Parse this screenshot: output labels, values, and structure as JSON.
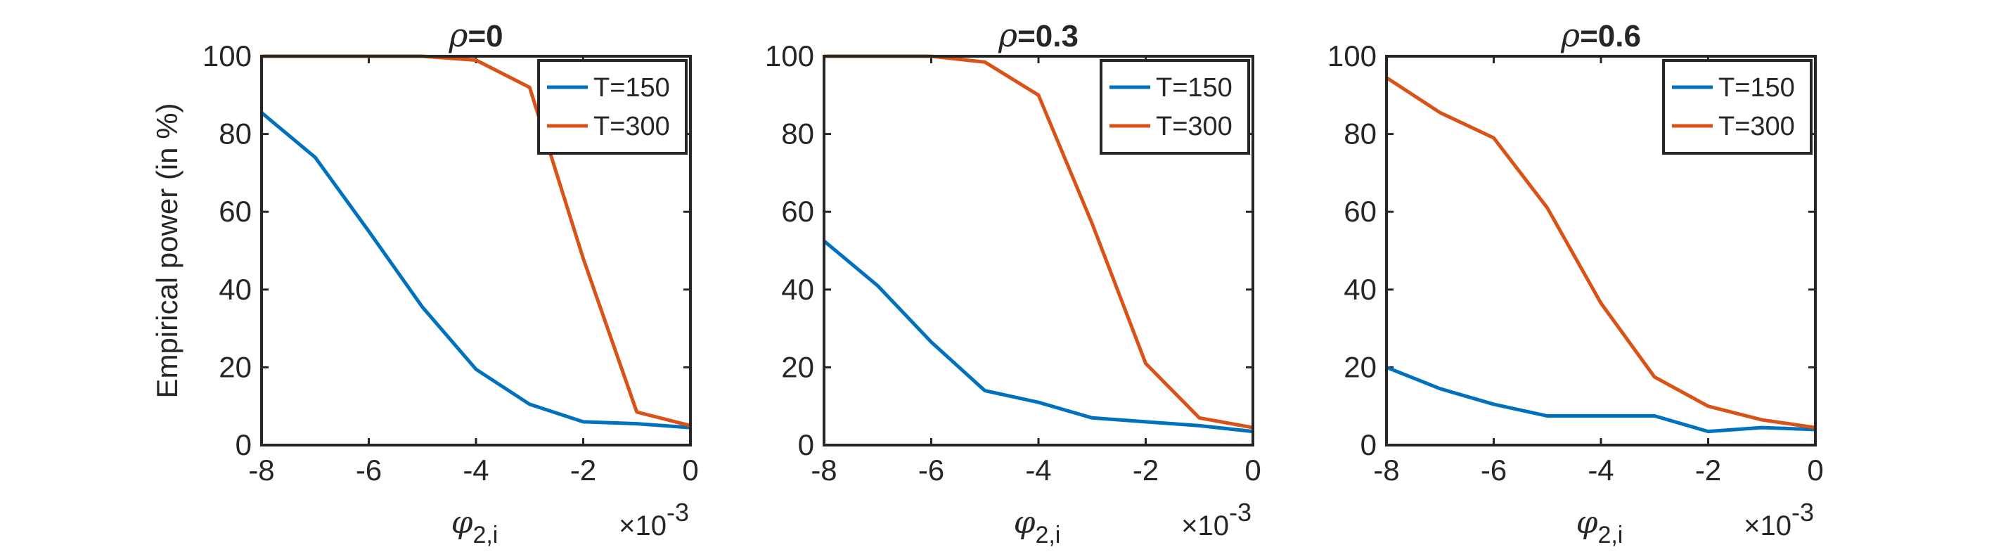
{
  "figure": {
    "ylabel": "Empirical power (in %)",
    "xlabel_symbol": "φ",
    "xlabel_subscript": "2,i",
    "x_exponent_prefix": "×10",
    "x_exponent_power": "-3",
    "colors": {
      "T=150": "#0072BD",
      "T=300": "#D95319",
      "axes": "#262626"
    }
  },
  "chart_data": [
    {
      "type": "line",
      "title_symbol": "ρ",
      "title": "=0",
      "xlim": [
        -8,
        0
      ],
      "ylim": [
        0,
        100
      ],
      "xticks": [
        -8,
        -6,
        -4,
        -2,
        0
      ],
      "yticks": [
        0,
        20,
        40,
        60,
        80,
        100
      ],
      "x_scale_label": "×10-3",
      "legend_position": "top-right",
      "grid": false,
      "x": [
        -8,
        -7,
        -6,
        -5,
        -4,
        -3,
        -2,
        -1,
        0
      ],
      "series": [
        {
          "name": "T=150",
          "color": "#0072BD",
          "values": [
            85.5,
            74,
            55,
            35.5,
            19.5,
            10.5,
            6,
            5.5,
            4.5
          ]
        },
        {
          "name": "T=300",
          "color": "#D95319",
          "values": [
            100,
            100,
            100,
            100,
            99,
            92,
            48,
            8.5,
            5
          ]
        }
      ]
    },
    {
      "type": "line",
      "title_symbol": "ρ",
      "title": "=0.3",
      "xlim": [
        -8,
        0
      ],
      "ylim": [
        0,
        100
      ],
      "xticks": [
        -8,
        -6,
        -4,
        -2,
        0
      ],
      "yticks": [
        0,
        20,
        40,
        60,
        80,
        100
      ],
      "x_scale_label": "×10-3",
      "legend_position": "top-right",
      "grid": false,
      "x": [
        -8,
        -7,
        -6,
        -5,
        -4,
        -3,
        -2,
        -1,
        0
      ],
      "series": [
        {
          "name": "T=150",
          "color": "#0072BD",
          "values": [
            52.5,
            41,
            26.5,
            14,
            11,
            7,
            6,
            5,
            3.5
          ]
        },
        {
          "name": "T=300",
          "color": "#D95319",
          "values": [
            100,
            100,
            100,
            98.5,
            90,
            57,
            21,
            7,
            4.5
          ]
        }
      ]
    },
    {
      "type": "line",
      "title_symbol": "ρ",
      "title": "=0.6",
      "xlim": [
        -8,
        0
      ],
      "ylim": [
        0,
        100
      ],
      "xticks": [
        -8,
        -6,
        -4,
        -2,
        0
      ],
      "yticks": [
        0,
        20,
        40,
        60,
        80,
        100
      ],
      "x_scale_label": "×10-3",
      "legend_position": "top-right",
      "grid": false,
      "x": [
        -8,
        -7,
        -6,
        -5,
        -4,
        -3,
        -2,
        -1,
        0
      ],
      "series": [
        {
          "name": "T=150",
          "color": "#0072BD",
          "values": [
            20,
            14.5,
            10.5,
            7.5,
            7.5,
            7.5,
            3.5,
            4.5,
            4
          ]
        },
        {
          "name": "T=300",
          "color": "#D95319",
          "values": [
            94.5,
            85.5,
            79,
            61,
            36.5,
            17.5,
            10,
            6.5,
            4.5
          ]
        }
      ]
    }
  ]
}
